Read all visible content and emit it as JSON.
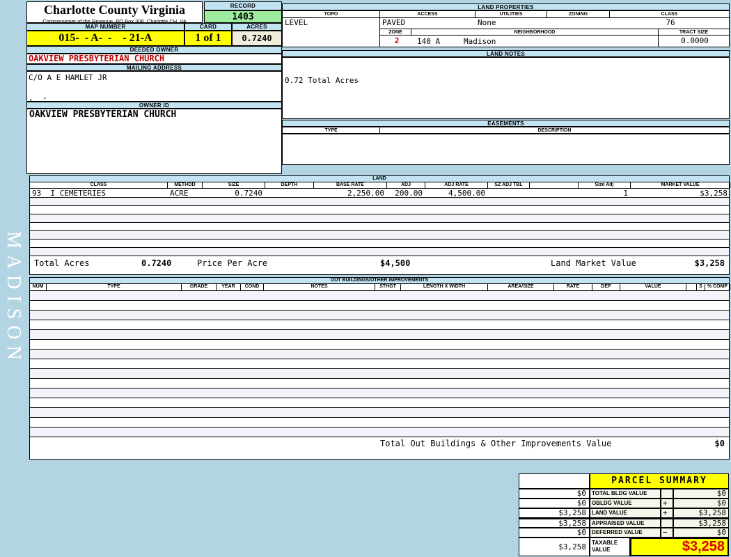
{
  "sidebar": {
    "district": "MADISON"
  },
  "header": {
    "county": "Charlotte County Virginia",
    "subtitle": "Commissioner of the Revenue, PO Box 308, Charlotte CH, VA",
    "record_label": "RECORD",
    "record_value": "1403",
    "map_number_label": "MAP NUMBER",
    "map_number_value": "015-  - A-  -    - 21-A",
    "card_label": "CARD",
    "card_value": "1 of 1",
    "acres_label": "ACRES",
    "acres_value": "0.7240"
  },
  "owner": {
    "deeded_owner_label": "DEEDED OWNER",
    "deeded_owner": "OAKVIEW PRESBYTERIAN CHURCH",
    "mailing_address_label": "MAILING ADDRESS",
    "mailing_line1": "C/O A E HAMLET JR",
    "mailing_line2": ",  -",
    "owner_id_label": "OWNER ID",
    "owner_id": "OAKVIEW PRESBYTERIAN CHURCH"
  },
  "land_properties": {
    "title": "LAND PROPERTIES",
    "topo_label": "TOPO",
    "topo": "LEVEL",
    "access_label": "ACCESS",
    "access": "PAVED",
    "utilities_label": "UTILITIES",
    "utilities": "None",
    "zoning_label": "ZONING",
    "zoning": "",
    "class_label": "CLASS",
    "class": "76",
    "zone_label": "ZONE",
    "zone": "2",
    "neighborhood_label": "NEIGHBORHOOD",
    "neighborhood_code": "140 A",
    "neighborhood": "Madison",
    "tract_size_label": "TRACT SIZE",
    "tract_size": "0.0000"
  },
  "land_notes": {
    "title": "LAND NOTES",
    "note": "0.72 Total Acres"
  },
  "easements": {
    "title": "EASEMENTS",
    "type_label": "TYPE",
    "description_label": "DESCRIPTION"
  },
  "land": {
    "title": "LAND",
    "headers": [
      "CLASS",
      "METHOD",
      "SIZE",
      "DEPTH",
      "BASE RATE",
      "ADJ",
      "ADJ RATE",
      "SZ ADJ TBL",
      "",
      "Size Adj",
      "MARKET VALUE"
    ],
    "row": {
      "class": "93  I CEMETERIES",
      "method": "ACRE",
      "size": "0.7240",
      "depth": "",
      "base_rate": "2,250.00",
      "adj": "200.00",
      "adj_rate": "4,500.00",
      "sz_adj_tbl": "",
      "blank": "",
      "size_adj": "1",
      "market_value": "$3,258"
    },
    "empty_row_count": 7,
    "totals": {
      "total_acres_label": "Total Acres",
      "total_acres": "0.7240",
      "price_per_acre_label": "Price Per Acre",
      "price_per_acre": "$4,500",
      "land_market_value_label": "Land Market Value",
      "land_market_value": "$3,258"
    }
  },
  "out_buildings": {
    "title": "OUT BUILDINGS/OTHER IMPROVEMENTS",
    "headers": [
      "NUM",
      "TYPE",
      "GRADE",
      "YEAR",
      "COND",
      "NOTES",
      "STHGT",
      "LENGTH X WIDTH",
      "AREA/SIZE",
      "RATE",
      "DEP",
      "VALUE",
      "",
      "S",
      "% COMP"
    ],
    "empty_row_count": 15,
    "total_label": "Total Out Buildings & Other Improvements Value",
    "total_value": "$0"
  },
  "parcel_summary": {
    "title": "PARCEL SUMMARY",
    "rows": [
      {
        "left": "$0",
        "label": "TOTAL BLDG VALUE",
        "op": "",
        "value": "$0"
      },
      {
        "left": "$0",
        "label": "OBLDG VALUE",
        "op": "+",
        "value": "$0"
      },
      {
        "left": "$3,258",
        "label": "LAND VALUE",
        "op": "+",
        "value": "$3,258"
      },
      {
        "left": "$3,258",
        "label": "APPRAISED VALUE",
        "op": "",
        "value": "$3,258"
      },
      {
        "left": "$0",
        "label": "DEFERRED VALUE",
        "op": "−",
        "value": "$0"
      }
    ],
    "taxable": {
      "left": "$3,258",
      "label_line1": "TAXABLE",
      "label_line2": "VALUE",
      "value": "$3,258"
    }
  },
  "colors": {
    "page_bg": "#b2d4e3",
    "section_bar": "#c2e3f2",
    "record_green": "#9deb9d",
    "highlight_yellow": "#ffff00",
    "acres_cream": "#efeedd",
    "owner_red": "#c00000",
    "taxable_red": "#dd0000"
  }
}
